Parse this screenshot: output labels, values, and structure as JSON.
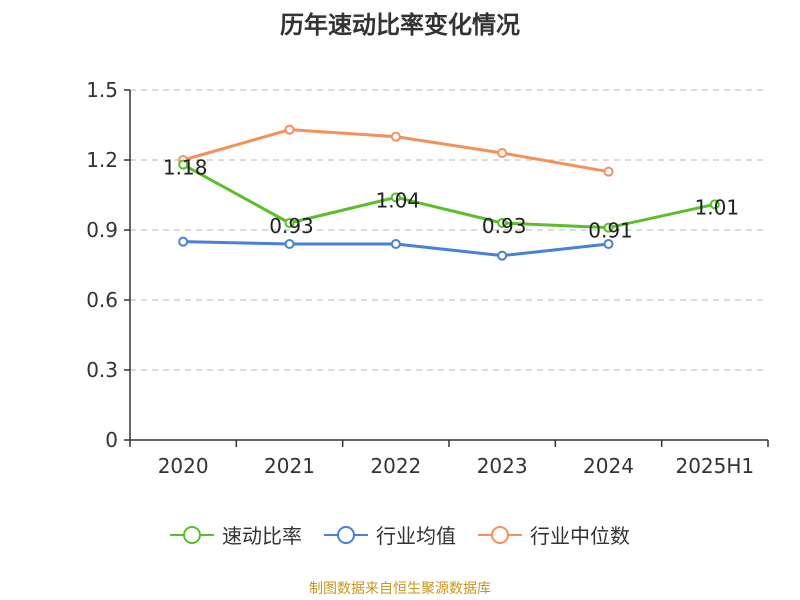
{
  "chart_data": {
    "type": "line",
    "title": "历年速动比率变化情况",
    "categories": [
      "2020",
      "2021",
      "2022",
      "2023",
      "2024",
      "2025H1"
    ],
    "ylim": [
      0,
      1.5
    ],
    "yticks": [
      "0",
      "0.3",
      "0.6",
      "0.9",
      "1.2",
      "1.5"
    ],
    "grid": true,
    "legend_position": "bottom",
    "series": [
      {
        "name": "速动比率",
        "color": "#5bbf2a",
        "values": [
          1.18,
          0.93,
          1.04,
          0.93,
          0.91,
          1.01
        ],
        "labels": [
          "1.18",
          "0.93",
          "1.04",
          "0.93",
          "0.91",
          "1.01"
        ],
        "show_labels": true
      },
      {
        "name": "行业均值",
        "color": "#4a7fdc",
        "values": [
          0.85,
          0.84,
          0.84,
          0.79,
          0.84,
          null
        ],
        "show_labels": false
      },
      {
        "name": "行业中位数",
        "color": "#f5905a",
        "values": [
          1.2,
          1.33,
          1.3,
          1.23,
          1.15,
          null
        ],
        "show_labels": false
      }
    ]
  },
  "source_text": "制图数据来自恒生聚源数据库"
}
